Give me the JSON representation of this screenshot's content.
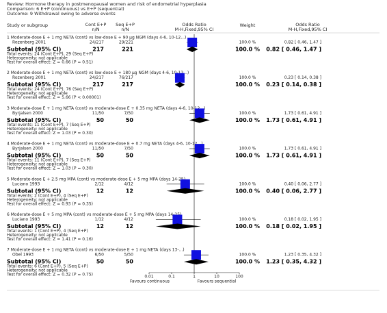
{
  "chart_data": {
    "type": "forest",
    "review": "Review:  Hormone therapy in postmenopausal women and risk of endometrial hyperplasia",
    "comparison": "Comparison:  6 E+P (continuous) vs E+P (sequential)",
    "outcome": "Outcome:  9 Withdrawal owing to adverse events",
    "columns": {
      "study": "Study or subgroup",
      "cont": "Cont E+P",
      "seq": "Seq E+P",
      "nN": "n/N",
      "or": "Odds Ratio",
      "method": "M-H,Fixed,95% CI",
      "weight": "Weight"
    },
    "xscale": "log",
    "xlim": [
      0.01,
      100
    ],
    "xticks": [
      0.01,
      0.1,
      1,
      10,
      100
    ],
    "x_left_label": "Favours continuous",
    "x_right_label": "Favours sequential",
    "color": "#1010e0",
    "subgroups": [
      {
        "title": "1 Moderate-dose E + 1 mg NETA (cont) vs low-dose E + 90 μg NGM (days 4-6, 10-12...)",
        "studies": [
          {
            "name": "Rozenberg 2001",
            "cont": "24/217",
            "seq": "29/221",
            "or": 0.82,
            "ci": [
              0.46,
              1.47
            ],
            "weight": 100,
            "weight_label": "100.0 %",
            "effect_label": "0.82 [ 0.46, 1.47 ]"
          }
        ],
        "subtotal": {
          "label": "Subtotal (95% CI)",
          "cont": 217,
          "seq": 221,
          "or": 0.82,
          "ci": [
            0.46,
            1.47
          ],
          "weight": 100,
          "weight_label": "100.0 %",
          "effect_label": "0.82 [ 0.46, 1.47 ]"
        },
        "total_events": "Total events: 24 (Cont E+P), 29 (Seq E+P)",
        "heterogeneity": "Heterogeneity: not applicable",
        "overall_effect": "Test for overall effect: Z = 0.66 (P = 0.51)"
      },
      {
        "title": "2 Moderate-dose E + 1 mg NETA (cont) vs low-dose E + 180 μg NGM (days 4-6, 10-12...)",
        "studies": [
          {
            "name": "Rozenberg 2001",
            "cont": "24/217",
            "seq": "76/217",
            "or": 0.23,
            "ci": [
              0.14,
              0.38
            ],
            "weight": 100,
            "weight_label": "100.0 %",
            "effect_label": "0.23 [ 0.14, 0.38 ]"
          }
        ],
        "subtotal": {
          "label": "Subtotal (95% CI)",
          "cont": 217,
          "seq": 217,
          "or": 0.23,
          "ci": [
            0.14,
            0.38
          ],
          "weight": 100,
          "weight_label": "100.0 %",
          "effect_label": "0.23 [ 0.14, 0.38 ]"
        },
        "total_events": "Total events: 24 (Cont E+P), 76 (Seq E+P)",
        "heterogeneity": "Heterogeneity: not applicable",
        "overall_effect": "Test for overall effect: Z = 5.66 (P < 0.00001)"
      },
      {
        "title": "3 Moderate-dose E + 1 mg NETA (cont) vs moderate-dose E + 0.35 mg NETA (days 4-6, 10-12...)",
        "studies": [
          {
            "name": "Byrjalsen 2000",
            "cont": "11/50",
            "seq": "7/50",
            "or": 1.73,
            "ci": [
              0.61,
              4.91
            ],
            "weight": 100,
            "weight_label": "100.0 %",
            "effect_label": "1.73 [ 0.61, 4.91 ]"
          }
        ],
        "subtotal": {
          "label": "Subtotal (95% CI)",
          "cont": 50,
          "seq": 50,
          "or": 1.73,
          "ci": [
            0.61,
            4.91
          ],
          "weight": 100,
          "weight_label": "100.0 %",
          "effect_label": "1.73 [ 0.61, 4.91 ]"
        },
        "total_events": "Total events: 11 (Cont E+P), 7 (Seq E+P)",
        "heterogeneity": "Heterogeneity: not applicable",
        "overall_effect": "Test for overall effect: Z = 1.03 (P = 0.30)"
      },
      {
        "title": "4 Moderate-dose E + 1 mg NETA (cont) vs moderate-dose E + 0.7 mg NETA (days 4-6, 10-12...)",
        "studies": [
          {
            "name": "Byrjalsen 2000",
            "cont": "11/50",
            "seq": "7/50",
            "or": 1.73,
            "ci": [
              0.61,
              4.91
            ],
            "weight": 100,
            "weight_label": "100.0 %",
            "effect_label": "1.73 [ 0.61, 4.91 ]"
          }
        ],
        "subtotal": {
          "label": "Subtotal (95% CI)",
          "cont": 50,
          "seq": 50,
          "or": 1.73,
          "ci": [
            0.61,
            4.91
          ],
          "weight": 100,
          "weight_label": "100.0 %",
          "effect_label": "1.73 [ 0.61, 4.91 ]"
        },
        "total_events": "Total events: 11 (Cont E+P), 7 (Seq E+P)",
        "heterogeneity": "Heterogeneity: not applicable",
        "overall_effect": "Test for overall effect: Z = 1.03 (P = 0.30)"
      },
      {
        "title": "5 Moderate-dose E + 2.5 mg MPA (cont) vs moderate-dose E + 5 mg MPA (days 14-25)",
        "studies": [
          {
            "name": "Luciano 1993",
            "cont": "2/12",
            "seq": "4/12",
            "or": 0.4,
            "ci": [
              0.06,
              2.77
            ],
            "weight": 100,
            "weight_label": "100.0 %",
            "effect_label": "0.40 [ 0.06, 2.77 ]"
          }
        ],
        "subtotal": {
          "label": "Subtotal (95% CI)",
          "cont": 12,
          "seq": 12,
          "or": 0.4,
          "ci": [
            0.06,
            2.77
          ],
          "weight": 100,
          "weight_label": "100.0 %",
          "effect_label": "0.40 [ 0.06, 2.77 ]"
        },
        "total_events": "Total events: 2 (Cont E+P), 4 (Seq E+P)",
        "heterogeneity": "Heterogeneity: not applicable",
        "overall_effect": "Test for overall effect: Z = 0.93 (P = 0.35)"
      },
      {
        "title": "6 Moderate-dose E + 5 mg MPA (cont) vs moderate-dose E + 5 mg MPA (days 14-25)",
        "studies": [
          {
            "name": "Luciano 1993",
            "cont": "1/12",
            "seq": "4/12",
            "or": 0.18,
            "ci": [
              0.02,
              1.95
            ],
            "weight": 100,
            "weight_label": "100.0 %",
            "effect_label": "0.18 [ 0.02, 1.95 ]"
          }
        ],
        "subtotal": {
          "label": "Subtotal (95% CI)",
          "cont": 12,
          "seq": 12,
          "or": 0.18,
          "ci": [
            0.02,
            1.95
          ],
          "weight": 100,
          "weight_label": "100.0 %",
          "effect_label": "0.18 [ 0.02, 1.95 ]"
        },
        "total_events": "Total events: 1 (Cont E+P), 4 (Seq E+P)",
        "heterogeneity": "Heterogeneity: not applicable",
        "overall_effect": "Test for overall effect: Z = 1.41 (P = 0.16)"
      },
      {
        "title": "7 Moderate-dose E + 1 mg NETA (cont) vs moderate-dose E + 1 mg NETA (days 13-...)",
        "studies": [
          {
            "name": "Obel 1993",
            "cont": "6/50",
            "seq": "5/50",
            "or": 1.23,
            "ci": [
              0.35,
              4.32
            ],
            "weight": 100,
            "weight_label": "100.0 %",
            "effect_label": "1.23 [ 0.35, 4.32 ]"
          }
        ],
        "subtotal": {
          "label": "Subtotal (95% CI)",
          "cont": 50,
          "seq": 50,
          "or": 1.23,
          "ci": [
            0.35,
            4.32
          ],
          "weight": 100,
          "weight_label": "100.0 %",
          "effect_label": "1.23 [ 0.35, 4.32 ]"
        },
        "total_events": "Total events: 6 (Cont E+P), 5 (Seq E+P)",
        "heterogeneity": "Heterogeneity: not applicable",
        "overall_effect": "Test for overall effect: Z = 0.32 (P = 0.75)"
      }
    ]
  }
}
